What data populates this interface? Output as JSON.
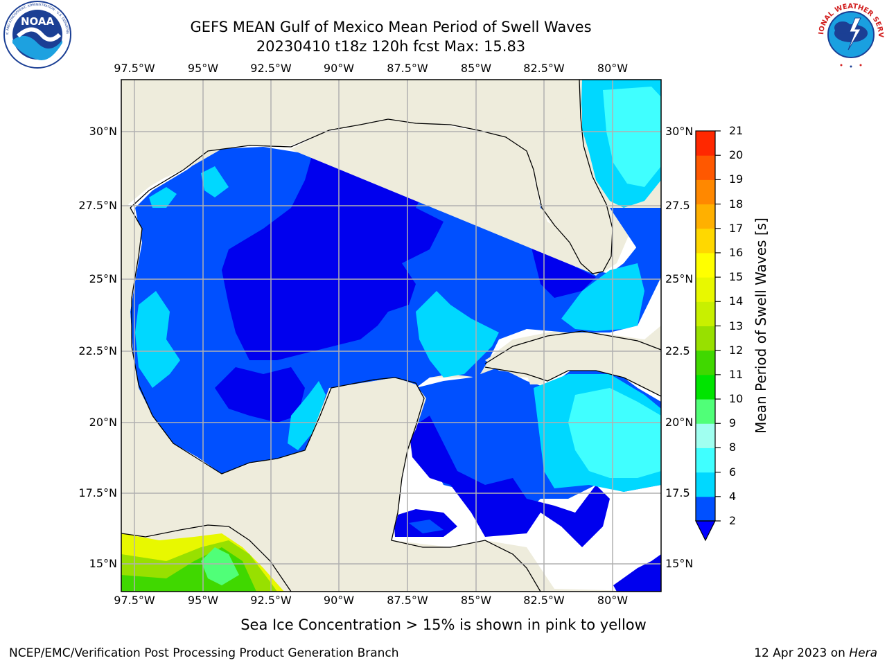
{
  "title": {
    "line1": "GEFS MEAN Gulf of Mexico Mean Period of Swell Waves",
    "line2": "20230410 t18z 120h fcst   Max: 15.83"
  },
  "logos": {
    "left": {
      "icon": "noaa-logo",
      "text": "NOAA",
      "ring_text": "NATIONAL OCEANIC AND ATMOSPHERIC ADMINISTRATION · U.S. DEPARTMENT OF COMMERCE"
    },
    "right": {
      "icon": "nws-logo",
      "ring_text": "NATIONAL WEATHER SERVICE"
    }
  },
  "map": {
    "lon_labels": [
      "97.5°W",
      "95°W",
      "92.5°W",
      "90°W",
      "87.5°W",
      "85°W",
      "82.5°W",
      "80°W"
    ],
    "lat_labels_left": [
      "30°N",
      "27.5°N",
      "25°N",
      "22.5°N",
      "20°N",
      "17.5°N",
      "15°N"
    ],
    "lat_labels_right": [
      "30°N",
      "27.5",
      "25°N",
      "22.5",
      "20°N",
      "17.5",
      "15°N"
    ],
    "lon_range": [
      -98,
      -79
    ],
    "lat_range": [
      14,
      31.75
    ],
    "colors": {
      "land": "#eeecdc",
      "no_data": "#ffffff",
      "grid": "#b0b0b0",
      "coast": "#000000"
    }
  },
  "colorbar": {
    "label": "Mean Period of Swell Waves [s]",
    "ticks": [
      "2",
      "4",
      "6",
      "8",
      "9",
      "10",
      "11",
      "12",
      "13",
      "14",
      "15",
      "16",
      "17",
      "18",
      "19",
      "20",
      "21"
    ],
    "colors": [
      "#0050ff",
      "#00d8ff",
      "#40ffff",
      "#a0fff0",
      "#50ff78",
      "#00e400",
      "#40d800",
      "#98e000",
      "#c8f000",
      "#e8f800",
      "#ffff00",
      "#ffd800",
      "#ffb000",
      "#ff8800",
      "#ff5800",
      "#ff2800"
    ],
    "under_color": "#0000ff"
  },
  "footer": {
    "note": "Sea Ice Concentration > 15% is shown in pink to yellow",
    "credit": "NCEP/EMC/Verification Post Processing Product Generation Branch",
    "date": "12 Apr 2023 on ",
    "host": "Hera"
  }
}
